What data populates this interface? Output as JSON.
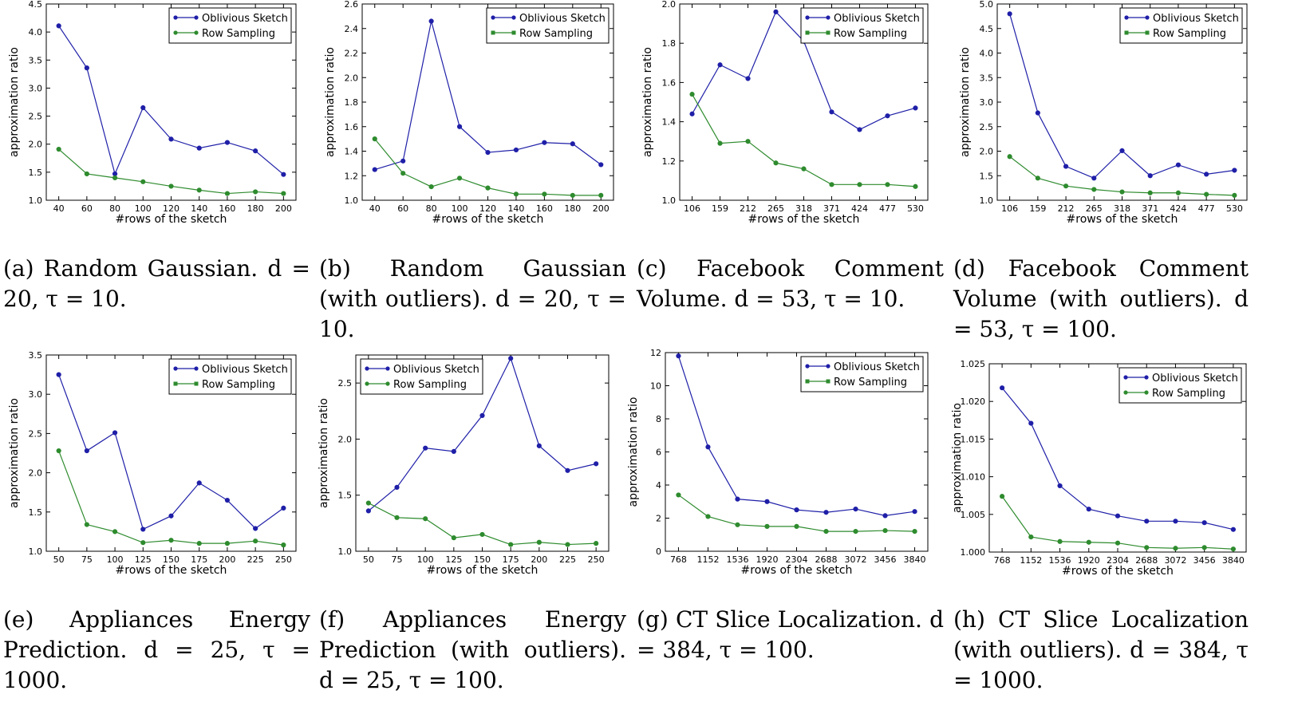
{
  "chart_data": [
    {
      "type": "line",
      "xlabel": "#rows of the sketch",
      "ylabel": "approximation ratio",
      "categories": [
        "40",
        "60",
        "80",
        "100",
        "120",
        "140",
        "160",
        "180",
        "200"
      ],
      "ylim": [
        1.0,
        4.5
      ],
      "yticks": [
        "1.0",
        "1.5",
        "2.0",
        "2.5",
        "3.0",
        "3.5",
        "4.0",
        "4.5"
      ],
      "legend_pos": "top-right",
      "series": [
        {
          "name": "Oblivious Sketch",
          "color": "#1f1fa8",
          "marker": "circle",
          "values": [
            4.11,
            3.36,
            1.47,
            2.65,
            2.09,
            1.93,
            2.03,
            1.88,
            1.46
          ]
        },
        {
          "name": "Row Sampling",
          "color": "#2e8b2e",
          "marker": "circle",
          "values": [
            1.91,
            1.47,
            1.4,
            1.33,
            1.25,
            1.18,
            1.12,
            1.15,
            1.12
          ]
        }
      ],
      "caption": "(a) Random Gaussian. d = 20, τ = 10."
    },
    {
      "type": "line",
      "xlabel": "#rows of the sketch",
      "ylabel": "approximation ratio",
      "categories": [
        "40",
        "60",
        "80",
        "100",
        "120",
        "140",
        "160",
        "180",
        "200"
      ],
      "ylim": [
        1.0,
        2.6
      ],
      "yticks": [
        "1.0",
        "1.2",
        "1.4",
        "1.6",
        "1.8",
        "2.0",
        "2.2",
        "2.4",
        "2.6"
      ],
      "legend_pos": "top-right",
      "series": [
        {
          "name": "Oblivious Sketch",
          "color": "#1f1fa8",
          "marker": "circle",
          "values": [
            1.25,
            1.32,
            2.46,
            1.6,
            1.39,
            1.41,
            1.47,
            1.46,
            1.29
          ]
        },
        {
          "name": "Row Sampling",
          "color": "#2e8b2e",
          "marker": "square",
          "values": [
            1.5,
            1.22,
            1.11,
            1.18,
            1.1,
            1.05,
            1.05,
            1.04,
            1.04
          ]
        }
      ],
      "caption": "(b) Random Gaussian (with outliers). d = 20, τ = 10."
    },
    {
      "type": "line",
      "xlabel": "#rows of the sketch",
      "ylabel": "approximation ratio",
      "categories": [
        "106",
        "159",
        "212",
        "265",
        "318",
        "371",
        "424",
        "477",
        "530"
      ],
      "ylim": [
        1.0,
        2.0
      ],
      "yticks": [
        "1.0",
        "1.2",
        "1.4",
        "1.6",
        "1.8",
        "2.0"
      ],
      "legend_pos": "top-right",
      "series": [
        {
          "name": "Oblivious Sketch",
          "color": "#1f1fa8",
          "marker": "circle",
          "values": [
            1.44,
            1.69,
            1.62,
            1.96,
            1.81,
            1.45,
            1.36,
            1.43,
            1.47
          ]
        },
        {
          "name": "Row Sampling",
          "color": "#2e8b2e",
          "marker": "square",
          "values": [
            1.54,
            1.29,
            1.3,
            1.19,
            1.16,
            1.08,
            1.08,
            1.08,
            1.07
          ]
        }
      ],
      "caption": "(c) Facebook Comment Volume. d = 53, τ = 10."
    },
    {
      "type": "line",
      "xlabel": "#rows of the sketch",
      "ylabel": "approximation ratio",
      "categories": [
        "106",
        "159",
        "212",
        "265",
        "318",
        "371",
        "424",
        "477",
        "530"
      ],
      "ylim": [
        1.0,
        5.0
      ],
      "yticks": [
        "1.0",
        "1.5",
        "2.0",
        "2.5",
        "3.0",
        "3.5",
        "4.0",
        "4.5",
        "5.0"
      ],
      "legend_pos": "top-right",
      "series": [
        {
          "name": "Oblivious Sketch",
          "color": "#1f1fa8",
          "marker": "circle",
          "values": [
            4.8,
            2.78,
            1.69,
            1.45,
            2.01,
            1.5,
            1.72,
            1.53,
            1.61
          ]
        },
        {
          "name": "Row Sampling",
          "color": "#2e8b2e",
          "marker": "square",
          "values": [
            1.89,
            1.45,
            1.29,
            1.22,
            1.17,
            1.15,
            1.15,
            1.12,
            1.1
          ]
        }
      ],
      "caption": "(d) Facebook Comment Volume (with outliers). d = 53, τ = 100."
    },
    {
      "type": "line",
      "xlabel": "#rows of the sketch",
      "ylabel": "approximation ratio",
      "categories": [
        "50",
        "75",
        "100",
        "125",
        "150",
        "175",
        "200",
        "225",
        "250"
      ],
      "ylim": [
        1.0,
        3.5
      ],
      "yticks": [
        "1.0",
        "1.5",
        "2.0",
        "2.5",
        "3.0",
        "3.5"
      ],
      "legend_pos": "top-right",
      "series": [
        {
          "name": "Oblivious Sketch",
          "color": "#1f1fa8",
          "marker": "circle",
          "values": [
            3.25,
            2.28,
            2.51,
            1.28,
            1.45,
            1.87,
            1.65,
            1.29,
            1.55
          ]
        },
        {
          "name": "Row Sampling",
          "color": "#2e8b2e",
          "marker": "square",
          "values": [
            2.28,
            1.34,
            1.25,
            1.11,
            1.14,
            1.1,
            1.1,
            1.13,
            1.08
          ]
        }
      ],
      "caption": "(e) Appliances Energy Prediction. d = 25, τ = 1000."
    },
    {
      "type": "line",
      "xlabel": "#rows of the sketch",
      "ylabel": "approximation ratio",
      "categories": [
        "50",
        "75",
        "100",
        "125",
        "150",
        "175",
        "200",
        "225",
        "250"
      ],
      "ylim": [
        1.0,
        2.75
      ],
      "yticks": [
        "1.0",
        "1.5",
        "2.0",
        "2.5"
      ],
      "ytick_values": [
        1.0,
        1.5,
        2.0,
        2.5
      ],
      "legend_pos": "top-left",
      "series": [
        {
          "name": "Oblivious Sketch",
          "color": "#1f1fa8",
          "marker": "circle",
          "values": [
            1.36,
            1.57,
            1.92,
            1.89,
            2.21,
            2.72,
            1.94,
            1.72,
            1.78
          ]
        },
        {
          "name": "Row Sampling",
          "color": "#2e8b2e",
          "marker": "circle",
          "values": [
            1.43,
            1.3,
            1.29,
            1.12,
            1.15,
            1.06,
            1.08,
            1.06,
            1.07
          ]
        }
      ],
      "caption": "(f) Appliances Energy Prediction (with outliers). d = 25, τ = 100."
    },
    {
      "type": "line",
      "xlabel": "#rows of the sketch",
      "ylabel": "approximation ratio",
      "categories": [
        "768",
        "1152",
        "1536",
        "1920",
        "2304",
        "2688",
        "3072",
        "3456",
        "3840"
      ],
      "ylim": [
        0,
        12
      ],
      "yticks": [
        "0",
        "2",
        "4",
        "6",
        "8",
        "10",
        "12"
      ],
      "legend_pos": "top-right",
      "series": [
        {
          "name": "Oblivious Sketch",
          "color": "#1f1fa8",
          "marker": "circle",
          "values": [
            11.8,
            6.3,
            3.15,
            3.0,
            2.5,
            2.35,
            2.55,
            2.15,
            2.4
          ]
        },
        {
          "name": "Row Sampling",
          "color": "#2e8b2e",
          "marker": "square",
          "values": [
            3.4,
            2.1,
            1.6,
            1.5,
            1.5,
            1.2,
            1.2,
            1.25,
            1.2
          ]
        }
      ],
      "caption": "(g) CT Slice Localization. d = 384, τ = 100."
    },
    {
      "type": "line",
      "xlabel": "#rows of the sketch",
      "ylabel": "approximation ratio",
      "categories": [
        "768",
        "1152",
        "1536",
        "1920",
        "2304",
        "2688",
        "3072",
        "3456",
        "3840"
      ],
      "ylim": [
        1.0,
        1.025
      ],
      "yticks": [
        "1.000",
        "1.005",
        "1.010",
        "1.015",
        "1.020",
        "1.025"
      ],
      "legend_pos": "top-right",
      "series": [
        {
          "name": "Oblivious Sketch",
          "color": "#1f1fa8",
          "marker": "circle",
          "values": [
            1.0218,
            1.0171,
            1.0088,
            1.0057,
            1.0048,
            1.0041,
            1.0041,
            1.0039,
            1.003
          ]
        },
        {
          "name": "Row Sampling",
          "color": "#2e8b2e",
          "marker": "circle",
          "values": [
            1.0074,
            1.002,
            1.0014,
            1.0013,
            1.0012,
            1.0006,
            1.0005,
            1.0006,
            1.0004
          ]
        }
      ],
      "caption": "(h) CT Slice Localization (with outliers). d = 384, τ = 1000."
    }
  ]
}
